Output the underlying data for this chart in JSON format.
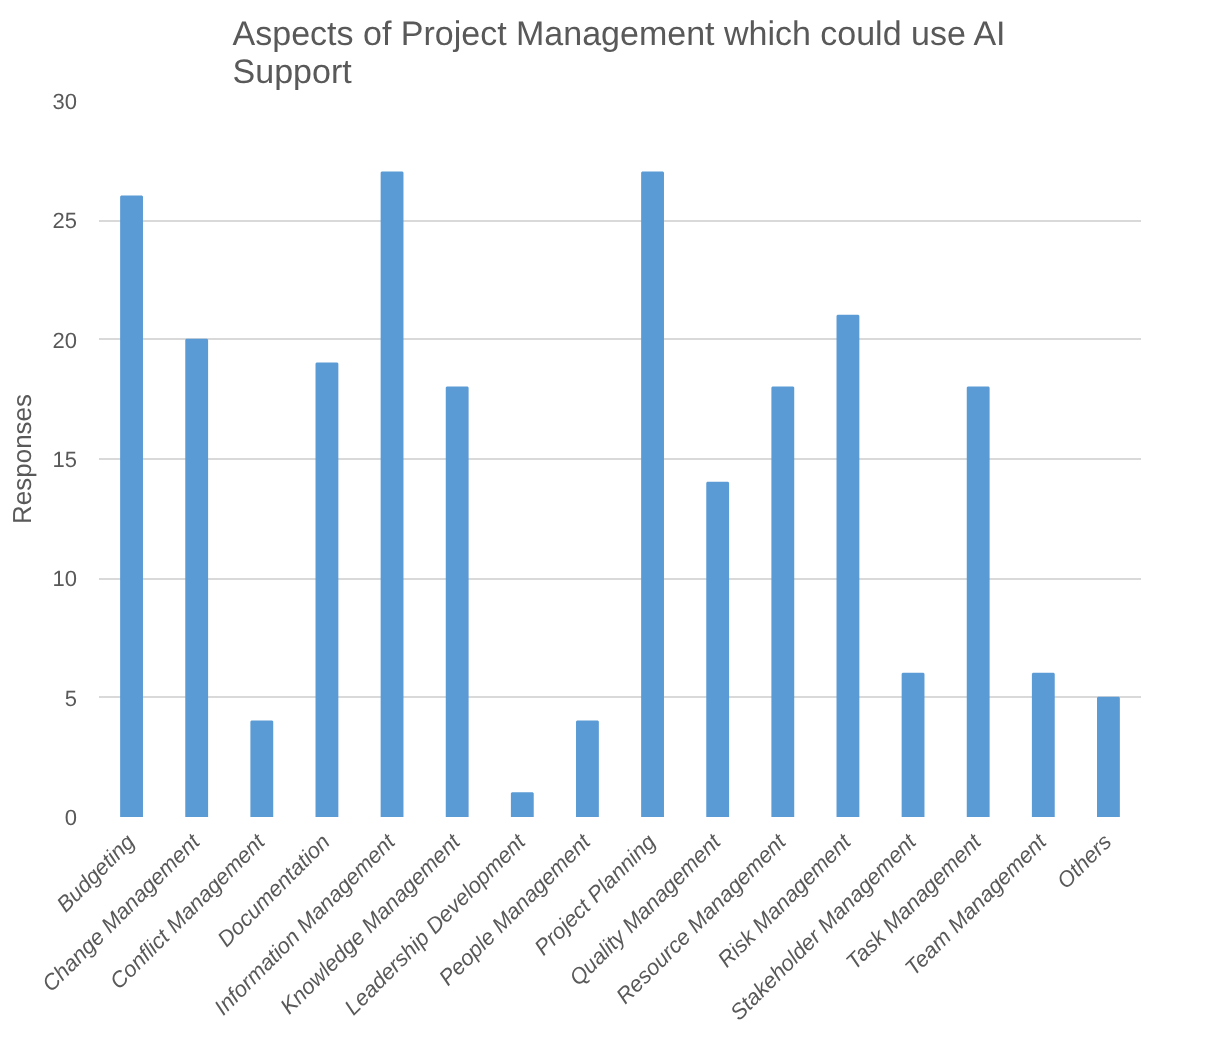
{
  "chart_data": {
    "type": "bar",
    "title": "Aspects of Project Management which could use AI\nSupport",
    "ylabel": "Responses",
    "categories": [
      "Budgeting",
      "Change Management",
      "Conflict Management",
      "Documentation",
      "Information Management",
      "Knowledge Management",
      "Leadership Development",
      "People Management",
      "Project Planning",
      "Quality Management",
      "Resource Management",
      "Risk Management",
      "Stakeholder Management",
      "Task Management",
      "Team Management",
      "Others"
    ],
    "values": [
      26,
      20,
      4,
      19,
      27,
      18,
      1,
      4,
      27,
      14,
      18,
      21,
      6,
      18,
      6,
      5
    ],
    "color": "#5b9bd5",
    "ylim": [
      0,
      30
    ],
    "yticks": [
      0,
      5,
      10,
      15,
      20,
      25,
      30
    ],
    "grid": "y"
  }
}
